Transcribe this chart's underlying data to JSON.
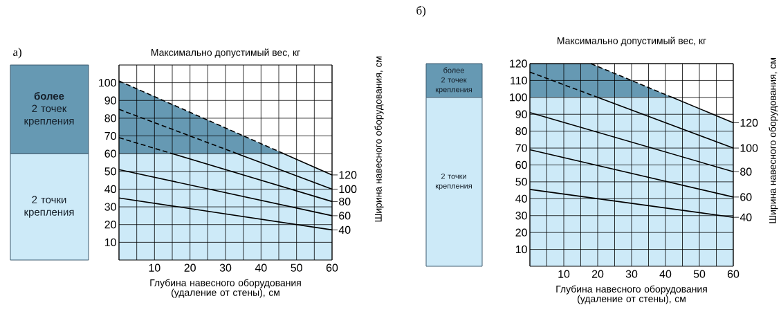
{
  "chart_data": [
    {
      "type": "line",
      "ylabel": "Максимально допустимый вес, кг",
      "xlabel": "Глубина навесного оборудования (удаление от стены), см",
      "y2label": "Ширина навесного оборудования, см",
      "xlim": [
        0,
        60
      ],
      "ylim": [
        0,
        110
      ],
      "xticks": [
        {
          "value": 0,
          "label": null
        },
        {
          "value": 5,
          "label": null
        },
        10,
        {
          "value": 15,
          "label": null
        },
        20,
        {
          "value": 25,
          "label": null
        },
        30,
        {
          "value": 35,
          "label": null
        },
        40,
        {
          "value": 45,
          "label": null
        },
        50,
        {
          "value": 55,
          "label": null
        },
        60
      ],
      "yticks": [
        10,
        20,
        30,
        40,
        50,
        60,
        70,
        80,
        90,
        100
      ],
      "grid": true,
      "legend": "right",
      "bands": [
        {
          "axis": "y",
          "from": 60,
          "to": 110,
          "color": "#6699b3"
        },
        {
          "axis": "y",
          "from": 0,
          "to": 60,
          "color": "#cdeaf8"
        }
      ],
      "annotations": [
        "**более** 2 точек крепления",
        "2 точки крепления",
        "а)"
      ],
      "series": [
        {
          "x": [
            0,
            46.4
          ],
          "values": [
            101,
            60
          ],
          "color": "#000000",
          "line_style": "dashed"
        },
        {
          "name": "120",
          "x": [
            46.4,
            60
          ],
          "values": [
            60,
            48
          ],
          "color": "#000000",
          "line_style": "solid"
        },
        {
          "x": [
            0,
            33.3
          ],
          "values": [
            85,
            60
          ],
          "color": "#000000",
          "line_style": "dashed"
        },
        {
          "name": "100",
          "x": [
            33.3,
            60
          ],
          "values": [
            60,
            40
          ],
          "color": "#000000",
          "line_style": "solid"
        },
        {
          "x": [
            0,
            15
          ],
          "values": [
            69,
            60
          ],
          "color": "#000000",
          "line_style": "dashed"
        },
        {
          "name": "80",
          "x": [
            15,
            60
          ],
          "values": [
            60,
            33
          ],
          "color": "#000000",
          "line_style": "solid"
        },
        {
          "name": "60",
          "x": [
            0,
            60
          ],
          "values": [
            51,
            25
          ],
          "color": "#000000",
          "line_style": "solid"
        },
        {
          "name": "40",
          "x": [
            0,
            60
          ],
          "values": [
            35,
            17
          ],
          "color": "#000000",
          "line_style": "solid"
        }
      ]
    },
    {
      "type": "line",
      "ylabel": "Максимально допустимый вес, кг",
      "xlabel": "Глубина навесного оборудования (удаление от стены), см",
      "y2label": "Ширина навесного оборудования, см",
      "xlim": [
        0,
        60
      ],
      "ylim": [
        0,
        120
      ],
      "xticks": [
        {
          "value": 0,
          "label": null
        },
        {
          "value": 5,
          "label": null
        },
        10,
        {
          "value": 15,
          "label": null
        },
        20,
        {
          "value": 25,
          "label": null
        },
        30,
        {
          "value": 35,
          "label": null
        },
        40,
        {
          "value": 45,
          "label": null
        },
        50,
        {
          "value": 55,
          "label": null
        },
        60
      ],
      "yticks": [
        10,
        20,
        30,
        40,
        50,
        60,
        70,
        80,
        90,
        100,
        110,
        120
      ],
      "grid": true,
      "legend": "right",
      "bands": [
        {
          "axis": "y",
          "from": 100,
          "to": 120,
          "color": "#6699b3"
        },
        {
          "axis": "y",
          "from": 0,
          "to": 100,
          "color": "#cdeaf8"
        }
      ],
      "annotations": [
        "более 2 точек крепления",
        "2 точки крепления",
        "б)"
      ],
      "series": [
        {
          "x": [
            18,
            42
          ],
          "values": [
            120,
            100
          ],
          "color": "#000000",
          "line_style": "dashed"
        },
        {
          "name": "120",
          "x": [
            42,
            60
          ],
          "values": [
            100,
            85
          ],
          "color": "#000000",
          "line_style": "solid"
        },
        {
          "x": [
            0,
            20
          ],
          "values": [
            115,
            100
          ],
          "color": "#000000",
          "line_style": "dashed"
        },
        {
          "name": "100",
          "x": [
            20,
            60
          ],
          "values": [
            100,
            70
          ],
          "color": "#000000",
          "line_style": "solid"
        },
        {
          "name": "80",
          "x": [
            0,
            60
          ],
          "values": [
            91,
            56
          ],
          "color": "#000000",
          "line_style": "solid"
        },
        {
          "name": "60",
          "x": [
            0,
            60
          ],
          "values": [
            69,
            41
          ],
          "color": "#000000",
          "line_style": "solid"
        },
        {
          "name": "40",
          "x": [
            0,
            60
          ],
          "values": [
            45.5,
            29
          ],
          "color": "#000000",
          "line_style": "solid"
        }
      ]
    }
  ]
}
